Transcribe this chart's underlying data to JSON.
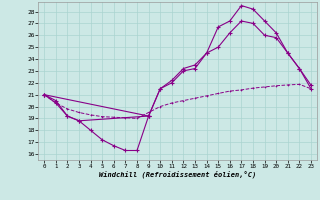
{
  "xlabel": "Windchill (Refroidissement éolien,°C)",
  "bg_color": "#cce8e5",
  "grid_color": "#aad4d0",
  "line_color": "#880088",
  "xlim_min": -0.5,
  "xlim_max": 23.5,
  "ylim_min": 15.5,
  "ylim_max": 28.8,
  "yticks": [
    16,
    17,
    18,
    19,
    20,
    21,
    22,
    23,
    24,
    25,
    26,
    27,
    28
  ],
  "xticks": [
    0,
    1,
    2,
    3,
    4,
    5,
    6,
    7,
    8,
    9,
    10,
    11,
    12,
    13,
    14,
    15,
    16,
    17,
    18,
    19,
    20,
    21,
    22,
    23
  ],
  "curve_dip_x": [
    0,
    1,
    2,
    3,
    4,
    5,
    6,
    7,
    8,
    9
  ],
  "curve_dip_y": [
    21.0,
    20.5,
    19.2,
    18.8,
    18.0,
    17.2,
    16.7,
    16.3,
    16.3,
    19.2
  ],
  "curve_top_x": [
    0,
    1,
    2,
    3,
    9,
    10,
    11,
    12,
    13,
    14,
    15,
    16,
    17,
    18,
    19,
    20,
    21,
    22,
    23
  ],
  "curve_top_y": [
    21.0,
    20.3,
    19.2,
    18.8,
    19.2,
    21.5,
    22.2,
    23.2,
    23.5,
    24.5,
    26.7,
    27.2,
    28.5,
    28.2,
    27.2,
    26.2,
    24.5,
    23.2,
    21.5
  ],
  "curve_mid_x": [
    0,
    9,
    10,
    11,
    12,
    13,
    14,
    15,
    16,
    17,
    18,
    19,
    20,
    21,
    22,
    23
  ],
  "curve_mid_y": [
    21.0,
    19.2,
    21.5,
    22.0,
    23.0,
    23.2,
    24.5,
    25.0,
    26.2,
    27.2,
    27.0,
    26.0,
    25.8,
    24.5,
    23.2,
    21.8
  ],
  "curve_flat_x": [
    0,
    1,
    2,
    3,
    4,
    5,
    6,
    7,
    8,
    9,
    10,
    11,
    12,
    13,
    14,
    15,
    16,
    17,
    18,
    19,
    20,
    21,
    22,
    23
  ],
  "curve_flat_y": [
    21.0,
    20.3,
    19.8,
    19.5,
    19.3,
    19.15,
    19.1,
    19.05,
    19.0,
    19.5,
    20.0,
    20.3,
    20.5,
    20.7,
    20.9,
    21.1,
    21.3,
    21.4,
    21.55,
    21.65,
    21.75,
    21.82,
    21.87,
    21.5
  ]
}
